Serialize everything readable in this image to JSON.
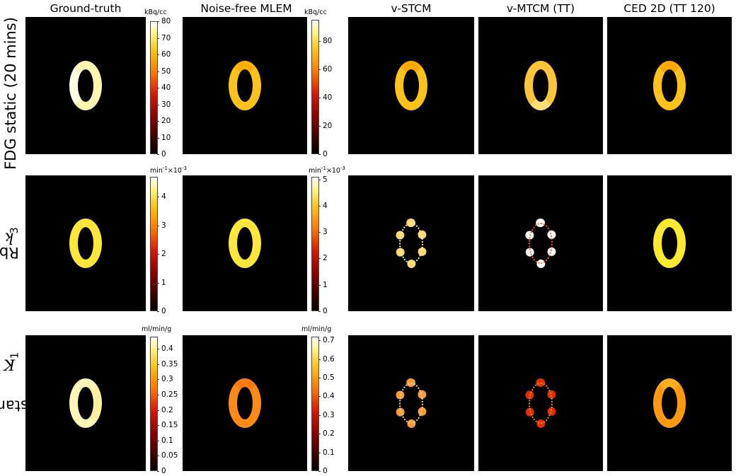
{
  "figure": {
    "columns": [
      "Ground-truth",
      "Noise-free MLEM",
      "v-STCM",
      "v-MTCM (TT)",
      "CED 2D (TT 120)"
    ],
    "rows": [
      {
        "label_prefix": "FDG static (20 mins)",
        "label_symbol": "",
        "label_sub": ""
      },
      {
        "label_prefix": "Rb ",
        "label_symbol": "k",
        "label_sub": "3"
      },
      {
        "label_prefix": "sestamibi ",
        "label_symbol": "K",
        "label_sub": "1"
      }
    ],
    "colorbars": [
      {
        "unit": "kBq/cc",
        "exponent": "",
        "ticks": [
          "80",
          "70",
          "60",
          "50",
          "40",
          "30",
          "20",
          "10",
          "0"
        ],
        "max": 80
      },
      {
        "unit": "kBq/cc",
        "exponent": "",
        "ticks": [
          "80",
          "60",
          "40",
          "20",
          "0"
        ],
        "max": 95
      },
      {
        "unit": "min",
        "unit_sup": "-1",
        "exponent": "×10",
        "exponent_sup": "-3",
        "ticks": [
          "4",
          "3",
          "2",
          "1",
          "0"
        ],
        "max": 4.7
      },
      {
        "unit": "min",
        "unit_sup": "-1",
        "exponent": "×10",
        "exponent_sup": "-3",
        "ticks": [
          "5",
          "4",
          "3",
          "2",
          "1",
          "0"
        ],
        "max": 5.1
      },
      {
        "unit": "ml/min/g",
        "exponent": "",
        "ticks": [
          "0.4",
          "0.35",
          "0.3",
          "0.25",
          "0.2",
          "0.15",
          "0.1",
          "0.05",
          "0"
        ],
        "max": 0.44
      },
      {
        "unit": "ml/min/g",
        "exponent": "",
        "ticks": [
          "0.7",
          "0.6",
          "0.5",
          "0.4",
          "0.3",
          "0.2",
          "0.1",
          "0"
        ],
        "max": 0.72
      }
    ]
  }
}
